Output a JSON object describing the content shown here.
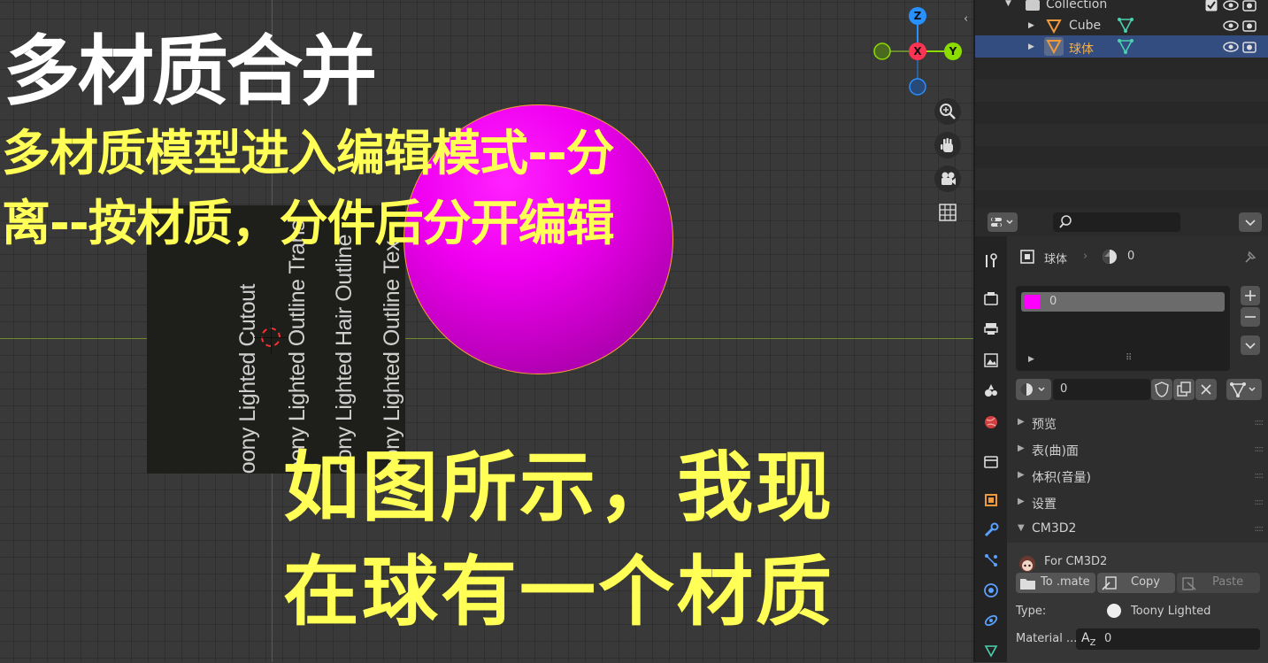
{
  "overlay": {
    "title": "多材质合并",
    "line1": "多材质模型进入编辑模式--分",
    "line2": "离--按材质，分件后分开编辑",
    "line3": "如图所示，我现",
    "line4": "在球有一个材质"
  },
  "viewport": {
    "plane_labels": [
      "oony Lighted Cutout",
      "oony Lighted Outline Trans",
      "oony Lighted Hair Outline",
      "oony Lighted Outline Tex"
    ],
    "gizmo": {
      "z": "Z",
      "x": "X",
      "y": "Y"
    },
    "colors": {
      "sphere": "#f000f0",
      "selection_outline": "#f5a033",
      "x_axis": "#ff3352",
      "y_axis": "#8bdc00",
      "z_axis": "#2890ff"
    },
    "tools": [
      "zoom-icon",
      "hand-icon",
      "camera-icon",
      "grid-icon"
    ]
  },
  "outliner": {
    "collection_label": "Collection",
    "items": [
      {
        "label": "Cube",
        "selected": false
      },
      {
        "label": "球体",
        "selected": true
      }
    ]
  },
  "properties": {
    "object_name": "球体",
    "material_users": "0",
    "slot_name": "0",
    "material_name": "0",
    "sections": [
      "预览",
      "表(曲)面",
      "体积(音量)",
      "设置",
      "CM3D2"
    ],
    "cm3d2": {
      "header": "For CM3D2",
      "to_mate": "To .mate",
      "copy": "Copy",
      "paste": "Paste",
      "type_label": "Type:",
      "type_value": "Toony Lighted",
      "material_label": "Material ...",
      "material_value": "0"
    }
  }
}
